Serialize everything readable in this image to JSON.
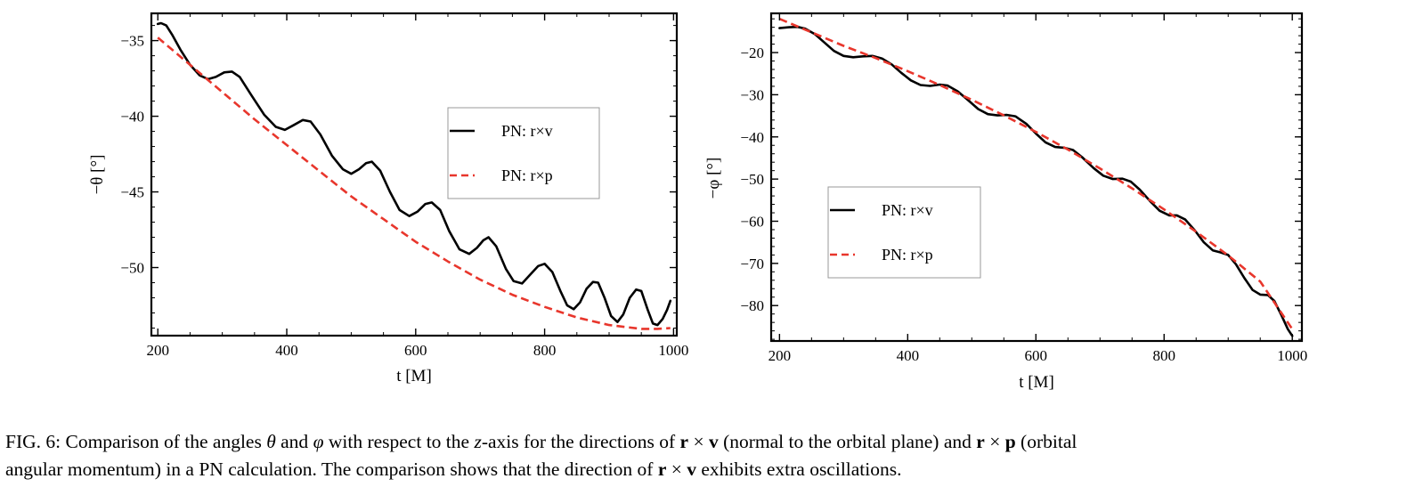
{
  "chart_data": [
    {
      "type": "line",
      "title": "",
      "xlabel": "t [M]",
      "ylabel": "−θ [°]",
      "xlim": [
        190,
        1005
      ],
      "ylim": [
        -54.5,
        -33.2
      ],
      "xticks": [
        200,
        400,
        600,
        800,
        1000
      ],
      "xtick_labels": [
        "200",
        "400",
        "600",
        "800",
        "1000"
      ],
      "yticks": [
        -35,
        -40,
        -45,
        -50
      ],
      "ytick_labels": [
        "−35",
        "−40",
        "−45",
        "−50"
      ],
      "grid": false,
      "legend_position": "center-right",
      "colors": {
        "rxv": "#000000",
        "rxp": "#e8362c"
      },
      "series": [
        {
          "name": "PN: r×v",
          "style": "solid",
          "points": [
            [
              200,
              -33.9
            ],
            [
              205,
              -33.85
            ],
            [
              213,
              -34.0
            ],
            [
              222,
              -34.6
            ],
            [
              235,
              -35.6
            ],
            [
              250,
              -36.6
            ],
            [
              265,
              -37.3
            ],
            [
              278,
              -37.55
            ],
            [
              290,
              -37.4
            ],
            [
              303,
              -37.1
            ],
            [
              315,
              -37.05
            ],
            [
              327,
              -37.4
            ],
            [
              345,
              -38.6
            ],
            [
              365,
              -39.9
            ],
            [
              383,
              -40.7
            ],
            [
              397,
              -40.9
            ],
            [
              410,
              -40.6
            ],
            [
              425,
              -40.25
            ],
            [
              437,
              -40.35
            ],
            [
              452,
              -41.2
            ],
            [
              470,
              -42.6
            ],
            [
              487,
              -43.5
            ],
            [
              500,
              -43.8
            ],
            [
              512,
              -43.5
            ],
            [
              523,
              -43.1
            ],
            [
              532,
              -43.0
            ],
            [
              545,
              -43.6
            ],
            [
              560,
              -45.0
            ],
            [
              575,
              -46.2
            ],
            [
              590,
              -46.6
            ],
            [
              603,
              -46.3
            ],
            [
              615,
              -45.8
            ],
            [
              625,
              -45.7
            ],
            [
              638,
              -46.2
            ],
            [
              652,
              -47.6
            ],
            [
              668,
              -48.8
            ],
            [
              683,
              -49.1
            ],
            [
              695,
              -48.7
            ],
            [
              705,
              -48.2
            ],
            [
              713,
              -48.0
            ],
            [
              725,
              -48.6
            ],
            [
              740,
              -50.1
            ],
            [
              752,
              -50.9
            ],
            [
              765,
              -51.05
            ],
            [
              777,
              -50.5
            ],
            [
              790,
              -49.9
            ],
            [
              800,
              -49.75
            ],
            [
              812,
              -50.3
            ],
            [
              825,
              -51.6
            ],
            [
              835,
              -52.5
            ],
            [
              845,
              -52.75
            ],
            [
              855,
              -52.3
            ],
            [
              865,
              -51.4
            ],
            [
              875,
              -50.95
            ],
            [
              883,
              -51.0
            ],
            [
              893,
              -52.0
            ],
            [
              903,
              -53.2
            ],
            [
              913,
              -53.6
            ],
            [
              922,
              -53.1
            ],
            [
              932,
              -52.0
            ],
            [
              942,
              -51.45
            ],
            [
              950,
              -51.55
            ],
            [
              960,
              -52.8
            ],
            [
              968,
              -53.7
            ],
            [
              975,
              -53.8
            ],
            [
              983,
              -53.4
            ],
            [
              990,
              -52.8
            ],
            [
              995,
              -52.2
            ]
          ]
        },
        {
          "name": "PN: r×p",
          "style": "dashed",
          "points": [
            [
              200,
              -34.8
            ],
            [
              250,
              -36.6
            ],
            [
              300,
              -38.4
            ],
            [
              350,
              -40.2
            ],
            [
              400,
              -41.9
            ],
            [
              450,
              -43.6
            ],
            [
              500,
              -45.3
            ],
            [
              550,
              -46.8
            ],
            [
              600,
              -48.3
            ],
            [
              650,
              -49.6
            ],
            [
              700,
              -50.8
            ],
            [
              750,
              -51.8
            ],
            [
              800,
              -52.6
            ],
            [
              850,
              -53.3
            ],
            [
              900,
              -53.8
            ],
            [
              950,
              -54.05
            ],
            [
              975,
              -54.05
            ],
            [
              995,
              -54.0
            ]
          ]
        }
      ]
    },
    {
      "type": "line",
      "title": "",
      "xlabel": "t [M]",
      "ylabel": "−φ [°]",
      "xlim": [
        187,
        1015
      ],
      "ylim": [
        -88.4,
        -10.7
      ],
      "xticks": [
        200,
        400,
        600,
        800,
        1000
      ],
      "xtick_labels": [
        "200",
        "400",
        "600",
        "800",
        "1000"
      ],
      "yticks": [
        -20,
        -30,
        -40,
        -50,
        -60,
        -70,
        -80
      ],
      "ytick_labels": [
        "−20",
        "−30",
        "−40",
        "−50",
        "−60",
        "−70",
        "−80"
      ],
      "grid": false,
      "legend_position": "center-left",
      "colors": {
        "rxv": "#000000",
        "rxp": "#e8362c"
      },
      "series": [
        {
          "name": "PN: r×v",
          "style": "solid",
          "points": [
            [
              200,
              -14.2
            ],
            [
              215,
              -14.0
            ],
            [
              228,
              -13.9
            ],
            [
              240,
              -14.3
            ],
            [
              255,
              -15.6
            ],
            [
              270,
              -17.6
            ],
            [
              285,
              -19.6
            ],
            [
              300,
              -20.8
            ],
            [
              315,
              -21.1
            ],
            [
              330,
              -20.9
            ],
            [
              345,
              -20.8
            ],
            [
              360,
              -21.4
            ],
            [
              375,
              -22.8
            ],
            [
              390,
              -24.8
            ],
            [
              405,
              -26.6
            ],
            [
              420,
              -27.7
            ],
            [
              435,
              -27.9
            ],
            [
              450,
              -27.6
            ],
            [
              462,
              -27.8
            ],
            [
              478,
              -29.2
            ],
            [
              495,
              -31.4
            ],
            [
              510,
              -33.4
            ],
            [
              525,
              -34.6
            ],
            [
              540,
              -34.9
            ],
            [
              555,
              -34.8
            ],
            [
              568,
              -35.1
            ],
            [
              585,
              -36.9
            ],
            [
              600,
              -39.2
            ],
            [
              615,
              -41.3
            ],
            [
              630,
              -42.4
            ],
            [
              645,
              -42.6
            ],
            [
              658,
              -43.1
            ],
            [
              672,
              -44.8
            ],
            [
              690,
              -47.4
            ],
            [
              705,
              -49.2
            ],
            [
              720,
              -50.0
            ],
            [
              735,
              -49.9
            ],
            [
              748,
              -50.6
            ],
            [
              762,
              -52.5
            ],
            [
              778,
              -55.2
            ],
            [
              793,
              -57.5
            ],
            [
              808,
              -58.6
            ],
            [
              820,
              -58.6
            ],
            [
              833,
              -59.6
            ],
            [
              848,
              -62.2
            ],
            [
              862,
              -65.0
            ],
            [
              876,
              -66.9
            ],
            [
              888,
              -67.4
            ],
            [
              900,
              -68.0
            ],
            [
              912,
              -70.2
            ],
            [
              925,
              -73.4
            ],
            [
              938,
              -76.3
            ],
            [
              950,
              -77.4
            ],
            [
              962,
              -77.5
            ],
            [
              972,
              -78.9
            ],
            [
              983,
              -82.3
            ],
            [
              993,
              -85.6
            ],
            [
              1000,
              -87.2
            ]
          ]
        },
        {
          "name": "PN: r×p",
          "style": "dashed",
          "points": [
            [
              200,
              -12.0
            ],
            [
              250,
              -15.2
            ],
            [
              300,
              -18.4
            ],
            [
              350,
              -21.3
            ],
            [
              400,
              -24.4
            ],
            [
              450,
              -27.7
            ],
            [
              500,
              -31.2
            ],
            [
              550,
              -34.9
            ],
            [
              600,
              -38.8
            ],
            [
              650,
              -43.0
            ],
            [
              700,
              -47.5
            ],
            [
              750,
              -52.2
            ],
            [
              800,
              -57.2
            ],
            [
              850,
              -62.5
            ],
            [
              900,
              -68.1
            ],
            [
              950,
              -74.3
            ],
            [
              1000,
              -85.6
            ]
          ]
        }
      ]
    }
  ],
  "caption": {
    "line1": [
      {
        "t": "FIG. 6:  Comparison of the angles ",
        "s": ""
      },
      {
        "t": "θ",
        "s": "i"
      },
      {
        "t": " and ",
        "s": ""
      },
      {
        "t": "φ",
        "s": "i"
      },
      {
        "t": " with respect to the ",
        "s": ""
      },
      {
        "t": "z",
        "s": "i"
      },
      {
        "t": "-axis for the directions of ",
        "s": ""
      },
      {
        "t": "r",
        "s": "b"
      },
      {
        "t": " × ",
        "s": ""
      },
      {
        "t": "v",
        "s": "b"
      },
      {
        "t": " (normal to the orbital plane) and ",
        "s": ""
      },
      {
        "t": "r",
        "s": "b"
      },
      {
        "t": " × ",
        "s": ""
      },
      {
        "t": "p",
        "s": "b"
      },
      {
        "t": " (orbital",
        "s": ""
      }
    ],
    "line2": [
      {
        "t": "angular momentum) in a PN calculation. The comparison shows that the direction of ",
        "s": ""
      },
      {
        "t": "r",
        "s": "b"
      },
      {
        "t": " × ",
        "s": ""
      },
      {
        "t": "v",
        "s": "b"
      },
      {
        "t": " exhibits extra oscillations.",
        "s": ""
      }
    ]
  }
}
